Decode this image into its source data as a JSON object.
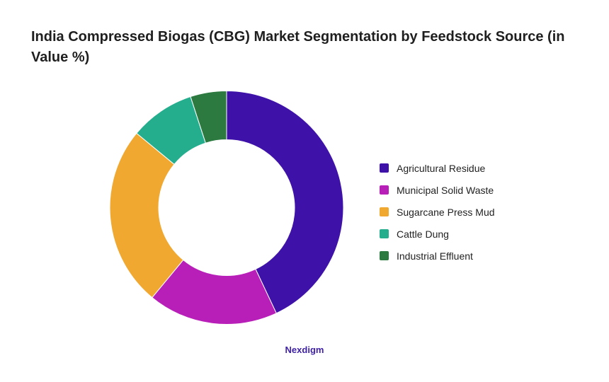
{
  "title": "India Compressed Biogas (CBG) Market Segmentation by Feedstock Source (in Value %)",
  "brand": "Nexdigm",
  "chart_data": {
    "type": "pie",
    "variant": "donut",
    "legend_position": "right",
    "slices": [
      {
        "label": "Agricultural Residue",
        "value": 43,
        "color": "#3e12a8"
      },
      {
        "label": "Municipal Solid Waste",
        "value": 18,
        "color": "#b81fb8"
      },
      {
        "label": "Sugarcane Press Mud",
        "value": 25,
        "color": "#f0a830"
      },
      {
        "label": "Cattle Dung",
        "value": 9,
        "color": "#25ae8e"
      },
      {
        "label": "Industrial Effluent",
        "value": 5,
        "color": "#2c7a3f"
      }
    ]
  }
}
